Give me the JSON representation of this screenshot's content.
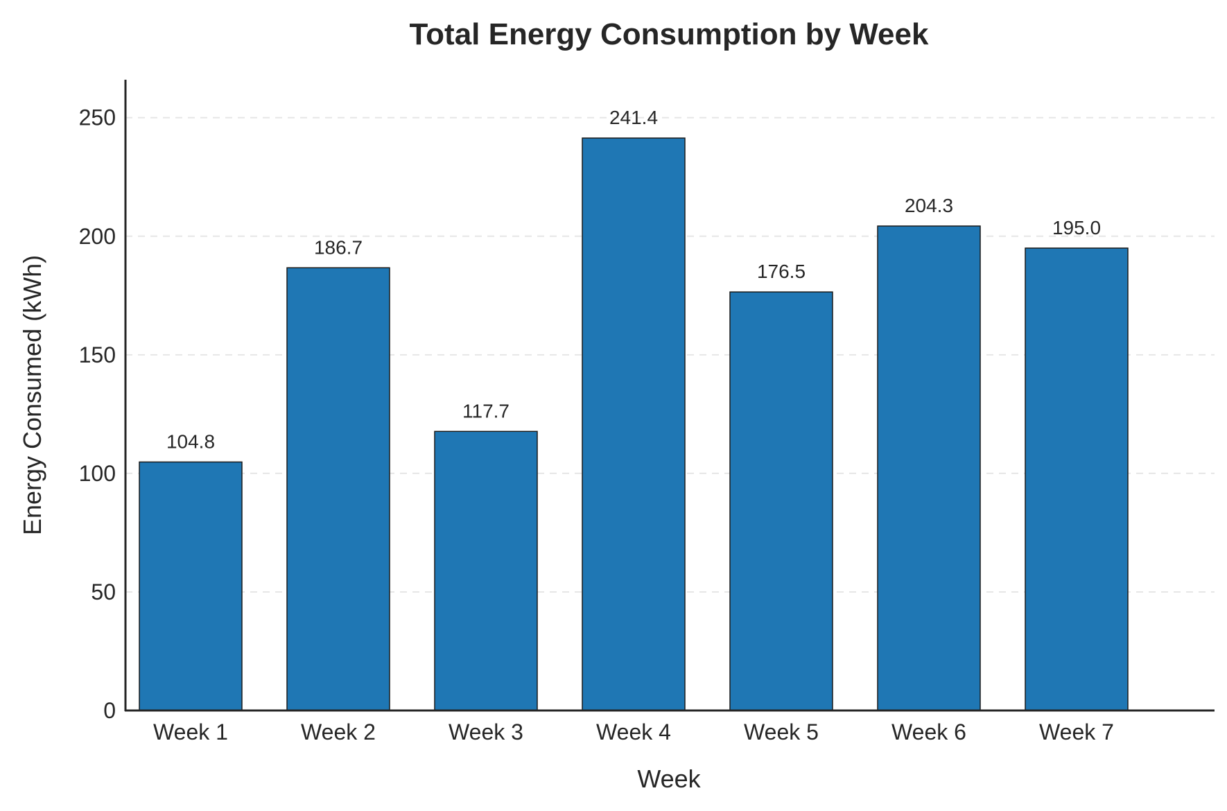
{
  "chart_data": {
    "type": "bar",
    "title": "Total Energy Consumption by Week",
    "xlabel": "Week",
    "ylabel": "Energy Consumed (kWh)",
    "categories": [
      "Week 1",
      "Week 2",
      "Week 3",
      "Week 4",
      "Week 5",
      "Week 6",
      "Week 7"
    ],
    "values": [
      104.8,
      186.7,
      117.7,
      241.4,
      176.5,
      204.3,
      195.0
    ],
    "data_labels": [
      "104.8",
      "186.7",
      "117.7",
      "241.4",
      "176.5",
      "204.3",
      "195.0"
    ],
    "ylim": [
      0,
      266
    ],
    "yticks": [
      0,
      50,
      100,
      150,
      200,
      250
    ],
    "grid": "y-dashed",
    "legend": "none",
    "bar_color": "#1f77b4",
    "edge_color": "#1a1a1a"
  }
}
